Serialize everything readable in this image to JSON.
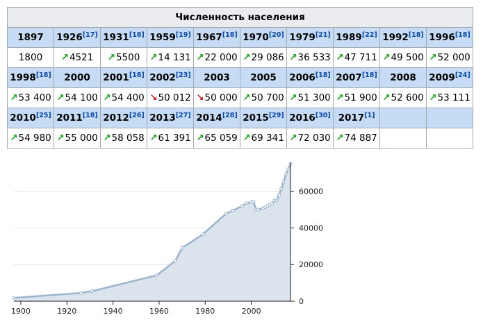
{
  "table": {
    "title": "Численность населения",
    "rows": [
      [
        {
          "year": "1897",
          "ref": "",
          "value": "1800",
          "trend": ""
        },
        {
          "year": "1926",
          "ref": "[17]",
          "value": "4521",
          "trend": "up"
        },
        {
          "year": "1931",
          "ref": "[18]",
          "value": "5500",
          "trend": "up"
        },
        {
          "year": "1959",
          "ref": "[19]",
          "value": "14 131",
          "trend": "up"
        },
        {
          "year": "1967",
          "ref": "[18]",
          "value": "22 000",
          "trend": "up"
        },
        {
          "year": "1970",
          "ref": "[20]",
          "value": "29 086",
          "trend": "up"
        },
        {
          "year": "1979",
          "ref": "[21]",
          "value": "36 533",
          "trend": "up"
        },
        {
          "year": "1989",
          "ref": "[22]",
          "value": "47 711",
          "trend": "up"
        },
        {
          "year": "1992",
          "ref": "[18]",
          "value": "49 500",
          "trend": "up"
        },
        {
          "year": "1996",
          "ref": "[18]",
          "value": "52 000",
          "trend": "up"
        }
      ],
      [
        {
          "year": "1998",
          "ref": "[18]",
          "value": "53 400",
          "trend": "up"
        },
        {
          "year": "2000",
          "ref": "",
          "value": "54 100",
          "trend": "up"
        },
        {
          "year": "2001",
          "ref": "[18]",
          "value": "54 400",
          "trend": "up"
        },
        {
          "year": "2002",
          "ref": "[23]",
          "value": "50 012",
          "trend": "down"
        },
        {
          "year": "2003",
          "ref": "",
          "value": "50 000",
          "trend": "down"
        },
        {
          "year": "2005",
          "ref": "",
          "value": "50 700",
          "trend": "up"
        },
        {
          "year": "2006",
          "ref": "[18]",
          "value": "51 300",
          "trend": "up"
        },
        {
          "year": "2007",
          "ref": "[18]",
          "value": "51 900",
          "trend": "up"
        },
        {
          "year": "2008",
          "ref": "",
          "value": "52 600",
          "trend": "up"
        },
        {
          "year": "2009",
          "ref": "[24]",
          "value": "53 111",
          "trend": "up"
        }
      ],
      [
        {
          "year": "2010",
          "ref": "[25]",
          "value": "54 980",
          "trend": "up"
        },
        {
          "year": "2011",
          "ref": "[18]",
          "value": "55 000",
          "trend": "up"
        },
        {
          "year": "2012",
          "ref": "[26]",
          "value": "58 058",
          "trend": "up"
        },
        {
          "year": "2013",
          "ref": "[27]",
          "value": "61 391",
          "trend": "up"
        },
        {
          "year": "2014",
          "ref": "[28]",
          "value": "65 059",
          "trend": "up"
        },
        {
          "year": "2015",
          "ref": "[29]",
          "value": "69 341",
          "trend": "up"
        },
        {
          "year": "2016",
          "ref": "[30]",
          "value": "72 030",
          "trend": "up"
        },
        {
          "year": "2017",
          "ref": "[1]",
          "value": "74 887",
          "trend": "up"
        }
      ]
    ]
  },
  "chart_data": {
    "type": "area",
    "x": [
      1897,
      1926,
      1931,
      1959,
      1967,
      1970,
      1979,
      1989,
      1992,
      1996,
      1998,
      2000,
      2001,
      2002,
      2003,
      2005,
      2006,
      2007,
      2008,
      2009,
      2010,
      2011,
      2012,
      2013,
      2014,
      2015,
      2016,
      2017
    ],
    "values": [
      1800,
      4521,
      5500,
      14131,
      22000,
      29086,
      36533,
      47711,
      49500,
      52000,
      53400,
      54100,
      54400,
      50012,
      50000,
      50700,
      51300,
      51900,
      52600,
      53111,
      54980,
      55000,
      58058,
      61391,
      65059,
      69341,
      72030,
      74887
    ],
    "xlim": [
      1897,
      2017
    ],
    "ylim": [
      0,
      75000
    ],
    "x_ticks": [
      "1900",
      "1920",
      "1940",
      "1960",
      "1980",
      "2000"
    ],
    "y_ticks": [
      "0",
      "20000",
      "40000",
      "60000"
    ],
    "grid": true,
    "colors": {
      "line": "#9ab3cf",
      "fill": "#dbe3ec",
      "grid": "#e4e4e4",
      "axis": "#222222",
      "up_arrow": "#1aa51a",
      "down_arrow": "#d11c1c"
    }
  }
}
